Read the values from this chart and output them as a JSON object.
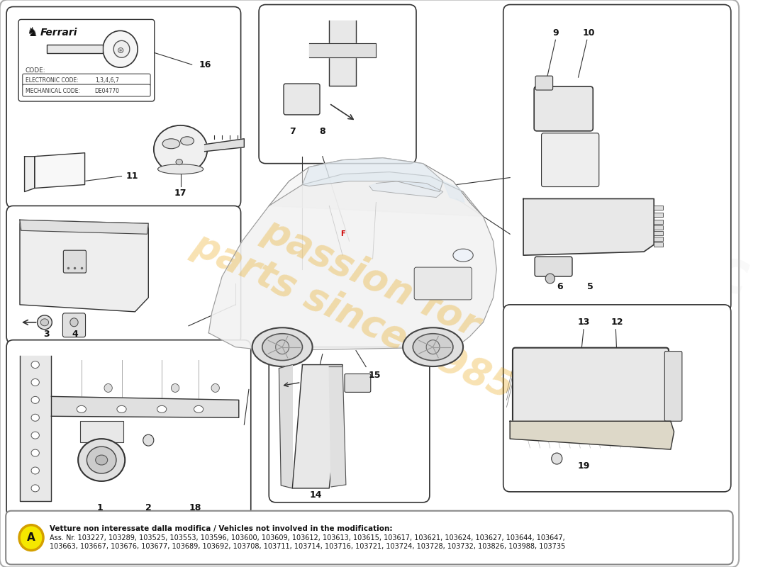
{
  "background_color": "#ffffff",
  "watermark_text1": "passion for",
  "watermark_text2": "parts since 1985",
  "watermark_color": "#e8a000",
  "watermark_alpha": 0.3,
  "note_line1": "Vetture non interessate dalla modifica / Vehicles not involved in the modification:",
  "note_line2": "Ass. Nr. 103227, 103289, 103525, 103553, 103596, 103600, 103609, 103612, 103613, 103615, 103617, 103621, 103624, 103627, 103644, 103647,",
  "note_line3": "103663, 103667, 103676, 103677, 103689, 103692, 103708, 103711, 103714, 103716, 103721, 103724, 103728, 103732, 103826, 103988, 103735",
  "lc": "#333333",
  "lw": 1.0
}
